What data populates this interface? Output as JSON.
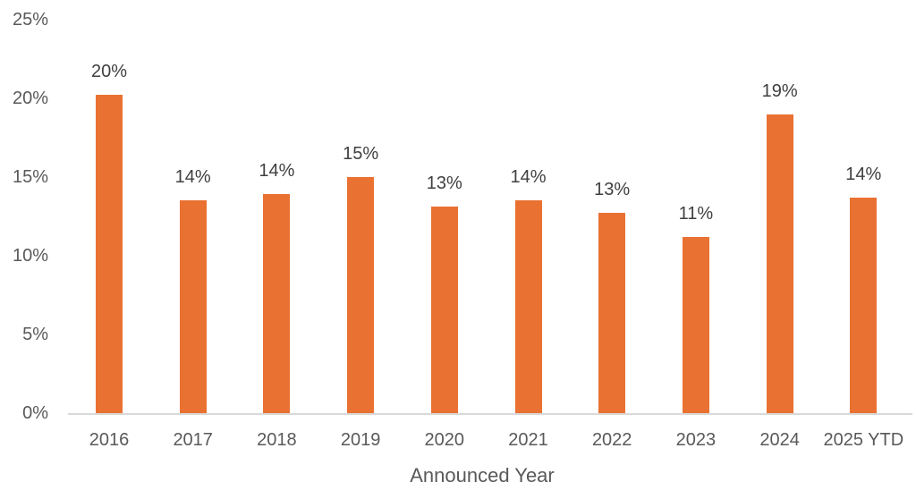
{
  "chart_data": {
    "type": "bar",
    "title": "",
    "xlabel": "Announced Year",
    "ylabel": "",
    "ylim": [
      0,
      25
    ],
    "yticks": [
      "0%",
      "5%",
      "10%",
      "15%",
      "20%",
      "25%"
    ],
    "grid": false,
    "legend": null,
    "bar_color": "#E97132",
    "categories": [
      "2016",
      "2017",
      "2018",
      "2019",
      "2020",
      "2021",
      "2022",
      "2023",
      "2024",
      "2025 YTD"
    ],
    "values": [
      20.2,
      13.5,
      13.9,
      15.0,
      13.1,
      13.5,
      12.7,
      11.2,
      19.0,
      13.7
    ],
    "data_labels": [
      "20%",
      "14%",
      "14%",
      "15%",
      "13%",
      "14%",
      "13%",
      "11%",
      "19%",
      "14%"
    ]
  }
}
